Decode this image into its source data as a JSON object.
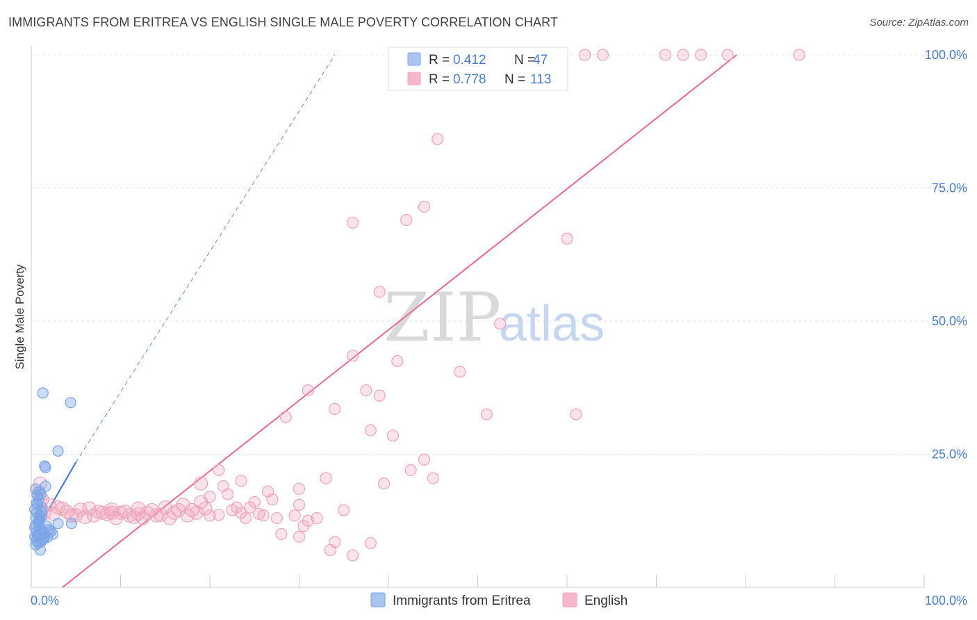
{
  "header": {
    "title": "IMMIGRANTS FROM ERITREA VS ENGLISH SINGLE MALE POVERTY CORRELATION CHART",
    "source": "Source: ZipAtlas.com"
  },
  "watermark": {
    "zip": "ZIP",
    "atlas": "atlas"
  },
  "legend_top": {
    "rows": [
      {
        "r_label": "R = ",
        "r_value": "0.412",
        "n_label": "N = ",
        "n_value": "47",
        "color": "#a9c4ee"
      },
      {
        "r_label": "R = ",
        "r_value": "0.778",
        "n_label": "N = ",
        "n_value": "113",
        "color": "#f5b8cb"
      }
    ]
  },
  "legend_bottom": [
    {
      "label": "Immigrants from Eritrea",
      "color": "#a9c4ee"
    },
    {
      "label": "English",
      "color": "#f5b8cb"
    }
  ],
  "chart_data": {
    "type": "scatter",
    "title": "IMMIGRANTS FROM ERITREA VS ENGLISH SINGLE MALE POVERTY CORRELATION CHART",
    "xlabel": "",
    "ylabel": "Single Male Poverty",
    "xlim": [
      0,
      100
    ],
    "ylim": [
      0,
      100
    ],
    "x_tick_labels": [
      "0.0%",
      "100.0%"
    ],
    "y_tick_labels": [
      "25.0%",
      "50.0%",
      "75.0%",
      "100.0%"
    ],
    "y_ticks": [
      25,
      50,
      75,
      100
    ],
    "grid": true,
    "legend_placement": "top-center",
    "series": [
      {
        "name": "Immigrants from Eritrea",
        "color": "#7aa5e6",
        "line_color": "#3a73d1",
        "R": 0.412,
        "N": 47,
        "trend": {
          "x0": 0.2,
          "y0": 9.5,
          "x1": 5.0,
          "y1": 23.5,
          "dashed_to": [
            34,
            100
          ]
        },
        "points": [
          [
            1.3,
            36.5
          ],
          [
            4.4,
            34.7
          ],
          [
            3.0,
            25.6
          ],
          [
            1.5,
            22.8
          ],
          [
            1.6,
            22.5
          ],
          [
            1.6,
            19.0
          ],
          [
            0.5,
            18.5
          ],
          [
            0.9,
            18.0
          ],
          [
            1.1,
            17.5
          ],
          [
            0.8,
            16.5
          ],
          [
            0.7,
            15.5
          ],
          [
            1.2,
            15.0
          ],
          [
            1.1,
            14.3
          ],
          [
            0.6,
            14.0
          ],
          [
            1.0,
            13.5
          ],
          [
            0.5,
            13.0
          ],
          [
            0.8,
            12.4
          ],
          [
            3.0,
            12.0
          ],
          [
            4.5,
            12.0
          ],
          [
            0.9,
            11.8
          ],
          [
            0.4,
            11.2
          ],
          [
            1.0,
            10.9
          ],
          [
            2.2,
            10.5
          ],
          [
            0.6,
            10.4
          ],
          [
            1.3,
            10.2
          ],
          [
            2.4,
            10.0
          ],
          [
            0.7,
            9.8
          ],
          [
            1.5,
            9.6
          ],
          [
            0.4,
            9.5
          ],
          [
            1.0,
            9.3
          ],
          [
            1.3,
            9.0
          ],
          [
            0.6,
            8.8
          ],
          [
            1.1,
            8.6
          ],
          [
            0.8,
            8.3
          ],
          [
            0.5,
            8.0
          ],
          [
            1.0,
            7.0
          ],
          [
            1.4,
            9.2
          ],
          [
            0.9,
            12.8
          ],
          [
            0.6,
            15.8
          ],
          [
            1.2,
            10.6
          ],
          [
            0.4,
            14.6
          ],
          [
            1.7,
            11.5
          ],
          [
            0.7,
            17.2
          ],
          [
            1.8,
            9.4
          ],
          [
            2.0,
            10.8
          ],
          [
            0.5,
            11.7
          ],
          [
            1.1,
            13.2
          ]
        ]
      },
      {
        "name": "English",
        "color": "#f0a3bb",
        "line_color": "#e8668f",
        "R": 0.778,
        "N": 113,
        "trend": {
          "x0": 3.5,
          "y0": 0,
          "x1": 79,
          "y1": 100
        },
        "points": [
          [
            41,
            100
          ],
          [
            46,
            100
          ],
          [
            47,
            100
          ],
          [
            48,
            100
          ],
          [
            49,
            100
          ],
          [
            54,
            100
          ],
          [
            56,
            100
          ],
          [
            62,
            100
          ],
          [
            64,
            100
          ],
          [
            71,
            100
          ],
          [
            73,
            100
          ],
          [
            75,
            100
          ],
          [
            78,
            100
          ],
          [
            86,
            100
          ],
          [
            45,
            100
          ],
          [
            53,
            100
          ],
          [
            57,
            100
          ],
          [
            58,
            100
          ],
          [
            45.5,
            84.2
          ],
          [
            44,
            71.5
          ],
          [
            42,
            69.0
          ],
          [
            36,
            68.5
          ],
          [
            60,
            65.5
          ],
          [
            39,
            55.5
          ],
          [
            52.5,
            49.5
          ],
          [
            36,
            43.5
          ],
          [
            41,
            42.5
          ],
          [
            48,
            40.5
          ],
          [
            31,
            37.0
          ],
          [
            37.5,
            37.0
          ],
          [
            39,
            36.0
          ],
          [
            34,
            33.5
          ],
          [
            28.5,
            32.0
          ],
          [
            51,
            32.5
          ],
          [
            61,
            32.5
          ],
          [
            38,
            29.5
          ],
          [
            40.5,
            28.5
          ],
          [
            44,
            24.0
          ],
          [
            21,
            22.0
          ],
          [
            42.5,
            22.0
          ],
          [
            33,
            20.5
          ],
          [
            45,
            20.5
          ],
          [
            23.5,
            20.0
          ],
          [
            39.5,
            19.5
          ],
          [
            19,
            19.5
          ],
          [
            21.5,
            19.0
          ],
          [
            30,
            18.5
          ],
          [
            26.5,
            18.0
          ],
          [
            22,
            17.5
          ],
          [
            20,
            17.0
          ],
          [
            27,
            16.5
          ],
          [
            19,
            16.0
          ],
          [
            25,
            16.0
          ],
          [
            30,
            15.5
          ],
          [
            17,
            15.5
          ],
          [
            23,
            15.0
          ],
          [
            15,
            15.0
          ],
          [
            12,
            14.8
          ],
          [
            6.5,
            14.8
          ],
          [
            9,
            14.6
          ],
          [
            35,
            14.5
          ],
          [
            18,
            14.5
          ],
          [
            4,
            14.2
          ],
          [
            8,
            14.0
          ],
          [
            10,
            14.0
          ],
          [
            13,
            14.0
          ],
          [
            16,
            14.0
          ],
          [
            1.5,
            14.0
          ],
          [
            2.5,
            13.8
          ],
          [
            5,
            13.5
          ],
          [
            7,
            13.5
          ],
          [
            11,
            13.5
          ],
          [
            14,
            13.5
          ],
          [
            26,
            13.5
          ],
          [
            29.5,
            13.5
          ],
          [
            27.5,
            13.0
          ],
          [
            24,
            13.0
          ],
          [
            3,
            15.0
          ],
          [
            32,
            13.0
          ],
          [
            31,
            12.5
          ],
          [
            20,
            13.5
          ],
          [
            6,
            13.2
          ],
          [
            9.5,
            13.0
          ],
          [
            12.5,
            13.0
          ],
          [
            17.5,
            13.5
          ],
          [
            15.5,
            13.0
          ],
          [
            4.5,
            13.5
          ],
          [
            22.5,
            14.5
          ],
          [
            30.5,
            11.5
          ],
          [
            28,
            10.0
          ],
          [
            30,
            9.5
          ],
          [
            34,
            8.5
          ],
          [
            38,
            8.3
          ],
          [
            33.5,
            7.0
          ],
          [
            36,
            6.0
          ],
          [
            10.5,
            14.2
          ],
          [
            13.5,
            14.5
          ],
          [
            16.5,
            14.5
          ],
          [
            7.5,
            14.2
          ],
          [
            5.5,
            14.6
          ],
          [
            2,
            15.5
          ],
          [
            1,
            19.5
          ],
          [
            1.2,
            16.5
          ],
          [
            3.5,
            14.8
          ],
          [
            18.5,
            14.0
          ],
          [
            24.5,
            15.0
          ],
          [
            8.5,
            13.8
          ],
          [
            11.5,
            13.2
          ],
          [
            14.5,
            13.6
          ],
          [
            19.5,
            14.8
          ],
          [
            23.5,
            14.0
          ],
          [
            0.8,
            17.5
          ],
          [
            25.5,
            13.8
          ],
          [
            21,
            13.6
          ],
          [
            12,
            13.8
          ],
          [
            9,
            14.0
          ]
        ]
      }
    ]
  }
}
